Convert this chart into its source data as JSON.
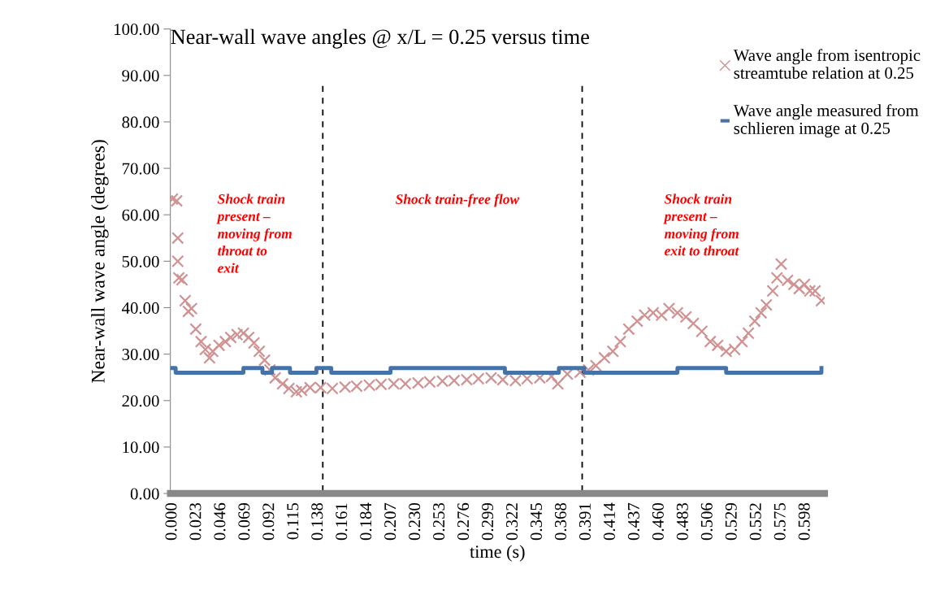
{
  "chart_data": {
    "type": "scatter",
    "title": "Near-wall wave angles @ x/L = 0.25 versus time",
    "xlabel": "time (s)",
    "ylabel": "Near-wall wave angle (degrees)",
    "annotations": [
      "Shock train\npresent –\nmoving from\nthroat to\nexit",
      "Shock train-free flow",
      "Shock train\npresent –\nmoving from\nexit to throat"
    ],
    "series": [
      {
        "name": "Wave angle from isentropic\nstreamtube relation at 0.25",
        "marker": "cross",
        "color": "#d09292",
        "x": [
          0.0,
          0.004,
          0.005,
          0.005,
          0.006,
          0.009,
          0.012,
          0.015,
          0.018,
          0.022,
          0.027,
          0.031,
          0.035,
          0.038,
          0.044,
          0.05,
          0.055,
          0.061,
          0.067,
          0.072,
          0.077,
          0.082,
          0.087,
          0.092,
          0.097,
          0.104,
          0.11,
          0.117,
          0.122,
          0.13,
          0.14,
          0.151,
          0.163,
          0.174,
          0.186,
          0.197,
          0.209,
          0.22,
          0.232,
          0.243,
          0.255,
          0.266,
          0.278,
          0.289,
          0.301,
          0.312,
          0.324,
          0.335,
          0.347,
          0.358,
          0.364,
          0.373,
          0.385,
          0.393,
          0.4,
          0.408,
          0.416,
          0.423,
          0.431,
          0.439,
          0.446,
          0.454,
          0.462,
          0.469,
          0.477,
          0.485,
          0.492,
          0.5,
          0.508,
          0.515,
          0.523,
          0.531,
          0.538,
          0.544,
          0.55,
          0.556,
          0.561,
          0.567,
          0.571,
          0.575,
          0.581,
          0.587,
          0.592,
          0.597,
          0.602,
          0.607,
          0.613
        ],
        "values": [
          63.4,
          63.0,
          55.0,
          50.0,
          46.4,
          46.0,
          41.5,
          39.2,
          39.8,
          35.4,
          32.7,
          31.0,
          29.2,
          30.6,
          31.9,
          32.7,
          33.6,
          34.2,
          34.5,
          33.6,
          32.4,
          30.6,
          28.7,
          26.6,
          24.9,
          23.6,
          22.6,
          21.9,
          22.2,
          22.8,
          22.8,
          22.6,
          22.9,
          23.1,
          23.3,
          23.5,
          23.6,
          23.6,
          23.8,
          24.0,
          24.2,
          24.3,
          24.5,
          24.7,
          24.9,
          24.5,
          24.3,
          24.7,
          24.9,
          25.2,
          23.6,
          25.7,
          26.1,
          26.6,
          27.5,
          29.2,
          30.6,
          32.7,
          35.4,
          37.1,
          38.4,
          38.9,
          38.4,
          39.8,
          38.9,
          38.0,
          36.6,
          34.9,
          32.7,
          31.9,
          30.6,
          31.0,
          32.7,
          34.5,
          37.1,
          38.9,
          40.6,
          43.6,
          46.4,
          49.4,
          45.9,
          45.0,
          44.1,
          45.0,
          43.6,
          43.6,
          41.5
        ]
      },
      {
        "name": "Wave angle measured from\nschlieren image at 0.25",
        "type": "step",
        "color": "#4572a7",
        "x": [
          0.0,
          0.003,
          0.067,
          0.085,
          0.094,
          0.111,
          0.136,
          0.15,
          0.206,
          0.314,
          0.365,
          0.389,
          0.477,
          0.523,
          0.613
        ],
        "values": [
          27,
          26,
          27,
          26,
          27,
          26,
          27,
          26,
          27,
          26,
          27,
          26,
          27,
          26,
          27
        ]
      }
    ],
    "ref_lines": [
      {
        "axis": "x",
        "value": 0.142,
        "color": "#000000",
        "line_style": "dashed"
      },
      {
        "axis": "x",
        "value": 0.387,
        "color": "#000000",
        "line_style": "dashed"
      }
    ],
    "xlim": [
      -0.002,
      0.616
    ],
    "xticks": [
      {
        "value": 0.0,
        "label": "0.000"
      },
      {
        "value": 0.023,
        "label": "0.023"
      },
      {
        "value": 0.046,
        "label": "0.046"
      },
      {
        "value": 0.069,
        "label": "0.069"
      },
      {
        "value": 0.092,
        "label": "0.092"
      },
      {
        "value": 0.115,
        "label": "0.115"
      },
      {
        "value": 0.138,
        "label": "0.138"
      },
      {
        "value": 0.161,
        "label": "0.161"
      },
      {
        "value": 0.184,
        "label": "0.184"
      },
      {
        "value": 0.207,
        "label": "0.207"
      },
      {
        "value": 0.23,
        "label": "0.230"
      },
      {
        "value": 0.253,
        "label": "0.253"
      },
      {
        "value": 0.276,
        "label": "0.276"
      },
      {
        "value": 0.299,
        "label": "0.299"
      },
      {
        "value": 0.322,
        "label": "0.322"
      },
      {
        "value": 0.345,
        "label": "0.345"
      },
      {
        "value": 0.368,
        "label": "0.368"
      },
      {
        "value": 0.391,
        "label": "0.391"
      },
      {
        "value": 0.414,
        "label": "0.414"
      },
      {
        "value": 0.437,
        "label": "0.437"
      },
      {
        "value": 0.46,
        "label": "0.460"
      },
      {
        "value": 0.483,
        "label": "0.483"
      },
      {
        "value": 0.506,
        "label": "0.506"
      },
      {
        "value": 0.529,
        "label": "0.529"
      },
      {
        "value": 0.552,
        "label": "0.552"
      },
      {
        "value": 0.575,
        "label": "0.575"
      },
      {
        "value": 0.598,
        "label": "0.598"
      }
    ],
    "ylim": [
      0,
      100
    ],
    "yticks": [
      {
        "value": 0,
        "label": "0.00"
      },
      {
        "value": 10,
        "label": "10.00"
      },
      {
        "value": 20,
        "label": "20.00"
      },
      {
        "value": 30,
        "label": "30.00"
      },
      {
        "value": 40,
        "label": "40.00"
      },
      {
        "value": 50,
        "label": "50.00"
      },
      {
        "value": 60,
        "label": "60.00"
      },
      {
        "value": 70,
        "label": "70.00"
      },
      {
        "value": 80,
        "label": "80.00"
      },
      {
        "value": 90,
        "label": "90.00"
      },
      {
        "value": 100,
        "label": "100.00"
      }
    ],
    "grid": false,
    "legend": "top right"
  }
}
